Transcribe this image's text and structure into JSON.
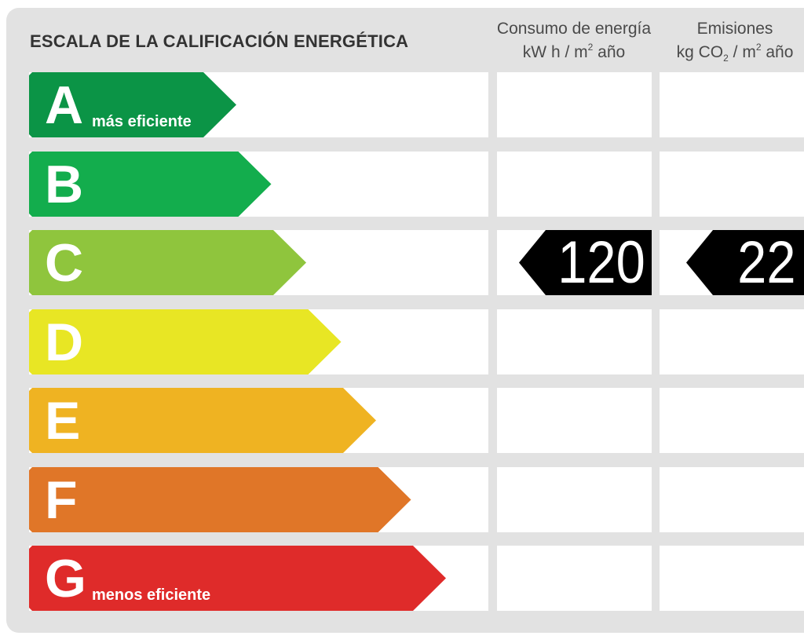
{
  "title": "ESCALA DE LA CALIFICACIÓN ENERGÉTICA",
  "columns": {
    "energy": {
      "line1": "Consumo de energía",
      "unit_pre": "kW h  / m",
      "unit_sup": "2",
      "unit_post": " año"
    },
    "emissions": {
      "line1": "Emisiones",
      "unit_pre": "kg CO",
      "unit_sub": "2",
      "unit_mid": "  / m",
      "unit_sup": "2",
      "unit_post": " año"
    }
  },
  "ratings": [
    {
      "letter": "A",
      "sublabel": "más eficiente",
      "color": "#0b9446"
    },
    {
      "letter": "B",
      "sublabel": "",
      "color": "#13ad4d"
    },
    {
      "letter": "C",
      "sublabel": "",
      "color": "#8fc53d"
    },
    {
      "letter": "D",
      "sublabel": "",
      "color": "#e8e624"
    },
    {
      "letter": "E",
      "sublabel": "",
      "color": "#efb322"
    },
    {
      "letter": "F",
      "sublabel": "",
      "color": "#e07628"
    },
    {
      "letter": "G",
      "sublabel": "menos eficiente",
      "color": "#df2b2a"
    }
  ],
  "result": {
    "rating": "C",
    "energy_value": "120",
    "emissions_value": "22",
    "indicator_color": "#000000"
  }
}
